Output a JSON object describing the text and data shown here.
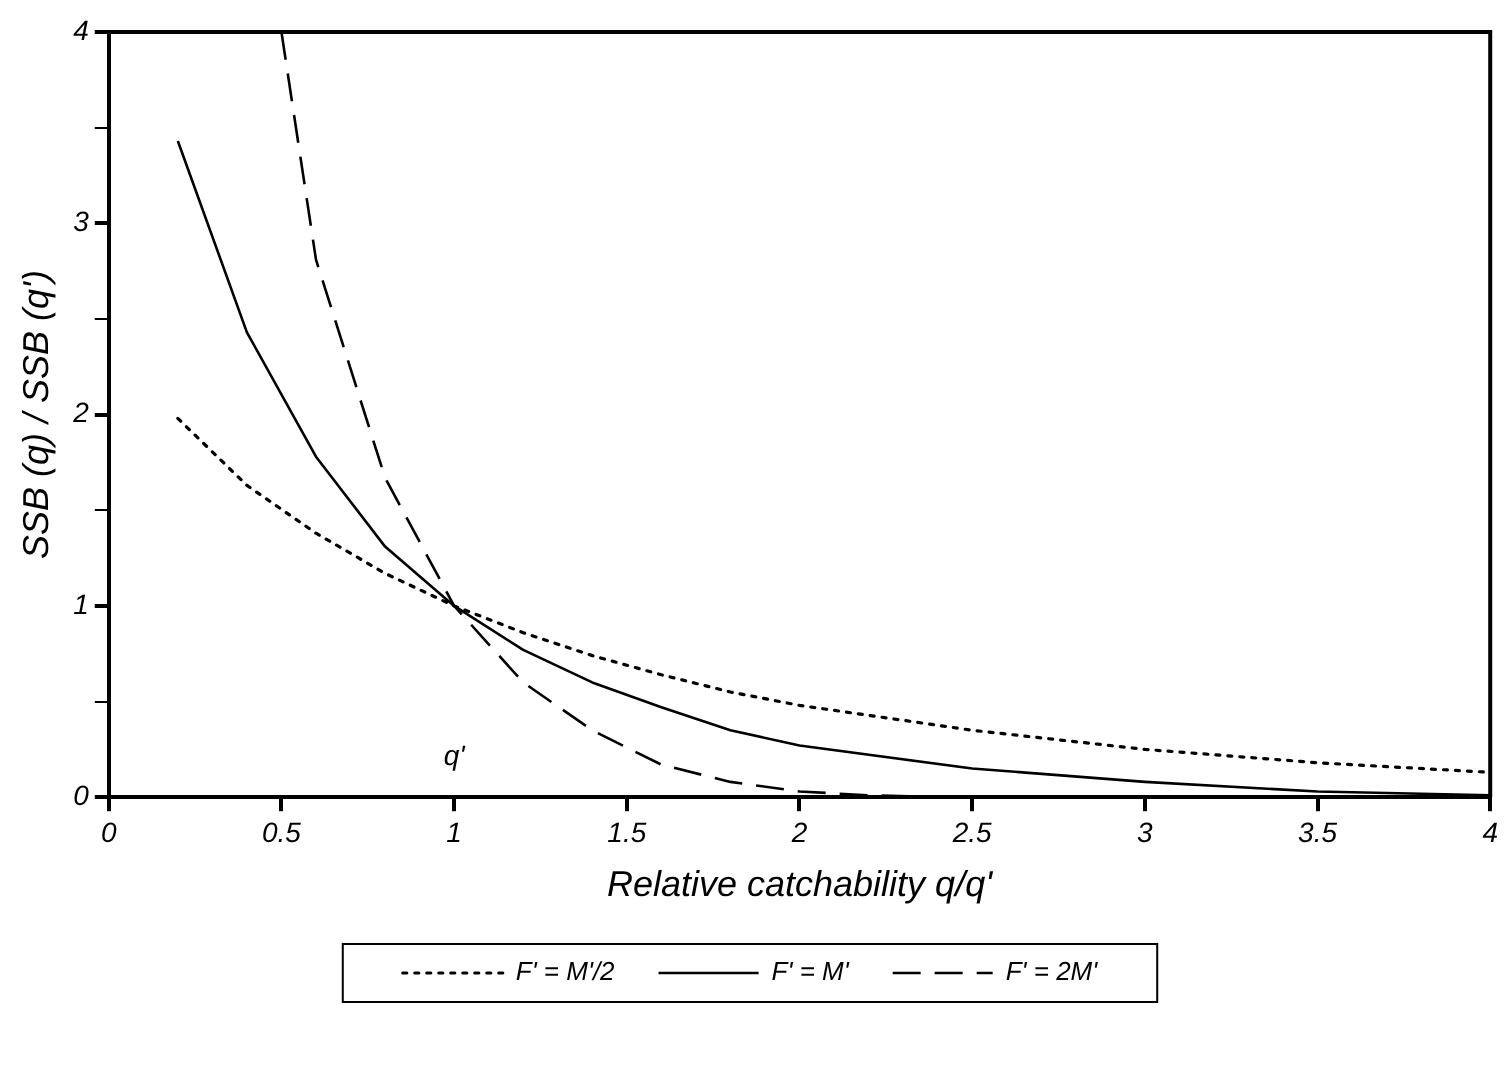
{
  "chart_data": {
    "type": "line",
    "xlabel": "Relative catchability q/q'",
    "ylabel": "SSB (q) / SSB (q')",
    "xlim": [
      0,
      4
    ],
    "xticks": [
      0,
      0.5,
      1,
      1.5,
      2,
      2.5,
      3,
      3.5,
      4
    ],
    "ylim": [
      0,
      4
    ],
    "yticks": [
      0,
      {
        "value": 0.5,
        "label": null
      },
      1,
      {
        "value": 1.5,
        "label": null
      },
      2,
      {
        "value": 2.5,
        "label": null
      },
      3,
      {
        "value": 3.5,
        "label": null
      },
      4
    ],
    "grid": false,
    "legend": "bottom",
    "marker": "none",
    "annotations": [
      "q'"
    ],
    "series": [
      {
        "name": "F' = M'/2",
        "color": "#000000",
        "line_style": "dotted",
        "x": [
          0.2,
          0.4,
          0.6,
          0.8,
          1,
          1.2,
          1.4,
          1.6,
          1.8,
          2,
          2.5,
          3,
          3.5,
          4
        ],
        "values": [
          1.98,
          1.63,
          1.38,
          1.17,
          1,
          0.86,
          0.74,
          0.64,
          0.55,
          0.48,
          0.35,
          0.25,
          0.18,
          0.13
        ]
      },
      {
        "name": "F' = M'",
        "color": "#000000",
        "line_style": "solid",
        "x": [
          0.2,
          0.4,
          0.6,
          0.8,
          1,
          1.2,
          1.4,
          1.6,
          1.8,
          2,
          2.5,
          3,
          3.5,
          4
        ],
        "values": [
          3.43,
          2.43,
          1.78,
          1.31,
          1,
          0.77,
          0.6,
          0.47,
          0.35,
          0.27,
          0.15,
          0.08,
          0.03,
          0.01
        ]
      },
      {
        "name": "F' = 2M'",
        "color": "#000000",
        "line_style": "dashed",
        "x": [
          0.5,
          0.6,
          0.8,
          1,
          1.2,
          1.4,
          1.6,
          1.8,
          2,
          2.2,
          2.4
        ],
        "values": [
          4,
          2.81,
          1.67,
          1,
          0.6,
          0.35,
          0.17,
          0.08,
          0.03,
          0.01,
          0
        ]
      }
    ]
  }
}
